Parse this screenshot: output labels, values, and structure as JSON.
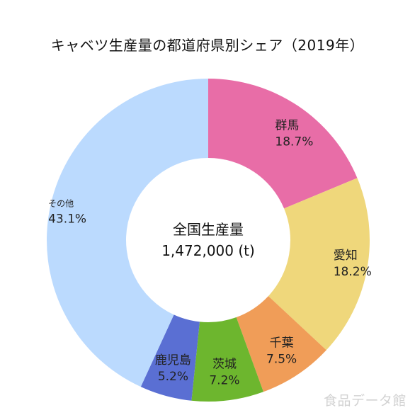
{
  "chart_data": {
    "type": "pie",
    "title": "キャベツ生産量の都道府県別シェア（2019年）",
    "donut": true,
    "center_label": "全国生産量",
    "center_value": "1,472,000 (t)",
    "slices": [
      {
        "name": "群馬",
        "value": 18.7,
        "label": "18.7%",
        "color": "#E86DA7"
      },
      {
        "name": "愛知",
        "value": 18.2,
        "label": "18.2%",
        "color": "#EFD77B"
      },
      {
        "name": "千葉",
        "value": 7.5,
        "label": "7.5%",
        "color": "#F09D58"
      },
      {
        "name": "茨城",
        "value": 7.2,
        "label": "7.2%",
        "color": "#6DB62E"
      },
      {
        "name": "鹿児島",
        "value": 5.2,
        "label": "5.2%",
        "color": "#5A6FD3"
      },
      {
        "name": "その他",
        "value": 43.1,
        "label": "43.1%",
        "color": "#BBDAFE"
      }
    ]
  },
  "watermark": "食品データ館"
}
